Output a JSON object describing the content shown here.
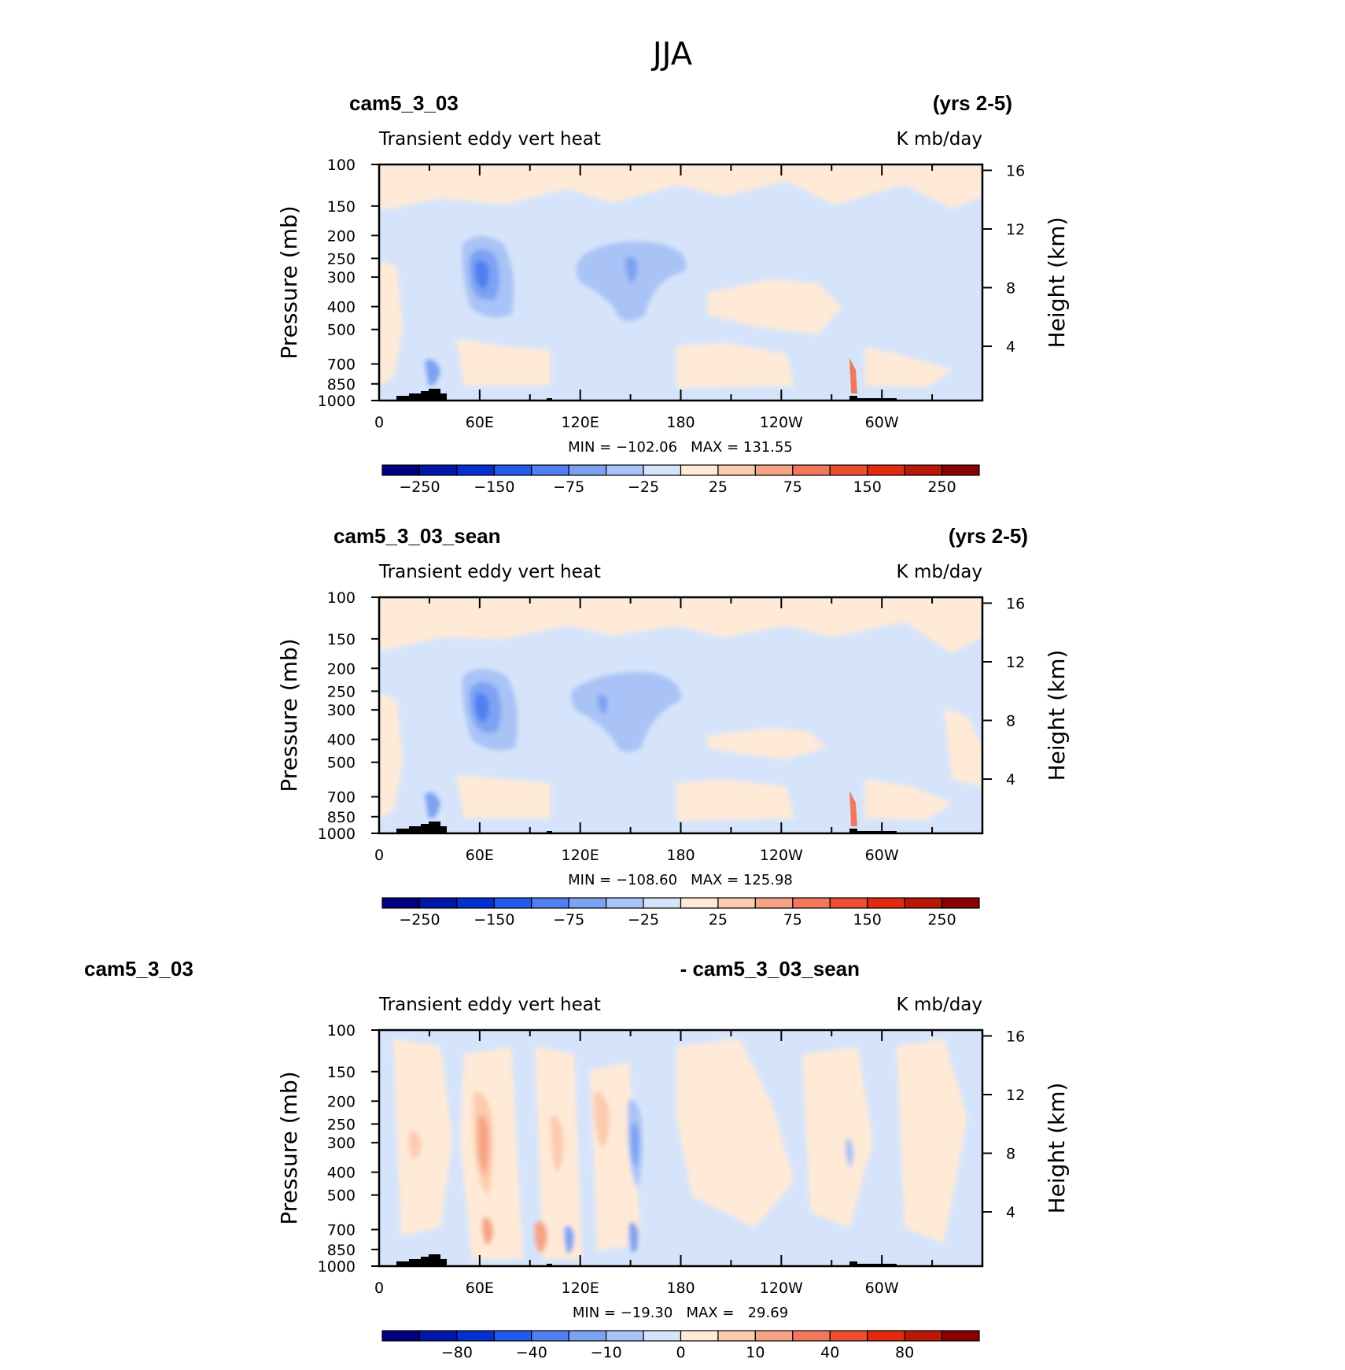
{
  "figure": {
    "title": "JJA"
  },
  "colors": {
    "full_scale": [
      "#00007f",
      "#0018a8",
      "#0530d1",
      "#2359ec",
      "#4f7ff0",
      "#7ca2f3",
      "#a9c3f6",
      "#d6e4fb",
      "#ffead7",
      "#fccbae",
      "#f6a285",
      "#f1785b",
      "#ee4d31",
      "#e22a0e",
      "#b81806",
      "#8b0000"
    ]
  },
  "chart_data": [
    {
      "type": "heatmap",
      "case_label": "cam5_3_03",
      "years_label": "(yrs 2-5)",
      "left_title": "Transient eddy vert heat",
      "units": "K mb/day",
      "ylabel": "Pressure (mb)",
      "y2label": "Height (km)",
      "x_ticks": [
        "0",
        "60E",
        "120E",
        "180",
        "120W",
        "60W"
      ],
      "y_ticks": [
        "100",
        "150",
        "200",
        "250",
        "300",
        "400",
        "500",
        "700",
        "850",
        "1000"
      ],
      "y2_ticks": [
        "16",
        "12",
        "8",
        "4"
      ],
      "stat_text": "MIN = −102.06   MAX = 131.55",
      "min": -102.06,
      "max": 131.55,
      "colorbar_labels": [
        "−250",
        "−150",
        "−75",
        "−25",
        "25",
        "75",
        "150",
        "250"
      ]
    },
    {
      "type": "heatmap",
      "case_label": "cam5_3_03_sean",
      "years_label": "(yrs 2-5)",
      "left_title": "Transient eddy vert heat",
      "units": "K mb/day",
      "ylabel": "Pressure (mb)",
      "y2label": "Height (km)",
      "x_ticks": [
        "0",
        "60E",
        "120E",
        "180",
        "120W",
        "60W"
      ],
      "y_ticks": [
        "100",
        "150",
        "200",
        "250",
        "300",
        "400",
        "500",
        "700",
        "850",
        "1000"
      ],
      "y2_ticks": [
        "16",
        "12",
        "8",
        "4"
      ],
      "stat_text": "MIN = −108.60   MAX = 125.98",
      "min": -108.6,
      "max": 125.98,
      "colorbar_labels": [
        "−250",
        "−150",
        "−75",
        "−25",
        "25",
        "75",
        "150",
        "250"
      ]
    },
    {
      "type": "heatmap",
      "case_label": "cam5_3_03",
      "years_label": "- cam5_3_03_sean",
      "left_title": "Transient eddy vert heat",
      "units": "K mb/day",
      "ylabel": "Pressure (mb)",
      "y2label": "Height (km)",
      "x_ticks": [
        "0",
        "60E",
        "120E",
        "180",
        "120W",
        "60W"
      ],
      "y_ticks": [
        "100",
        "150",
        "200",
        "250",
        "300",
        "400",
        "500",
        "700",
        "850",
        "1000"
      ],
      "y2_ticks": [
        "16",
        "12",
        "8",
        "4"
      ],
      "stat_text": "MIN = −19.30   MAX =   29.69",
      "min": -19.3,
      "max": 29.69,
      "colorbar_labels": [
        "−80",
        "−40",
        "−10",
        "0",
        "10",
        "40",
        "80"
      ]
    }
  ]
}
